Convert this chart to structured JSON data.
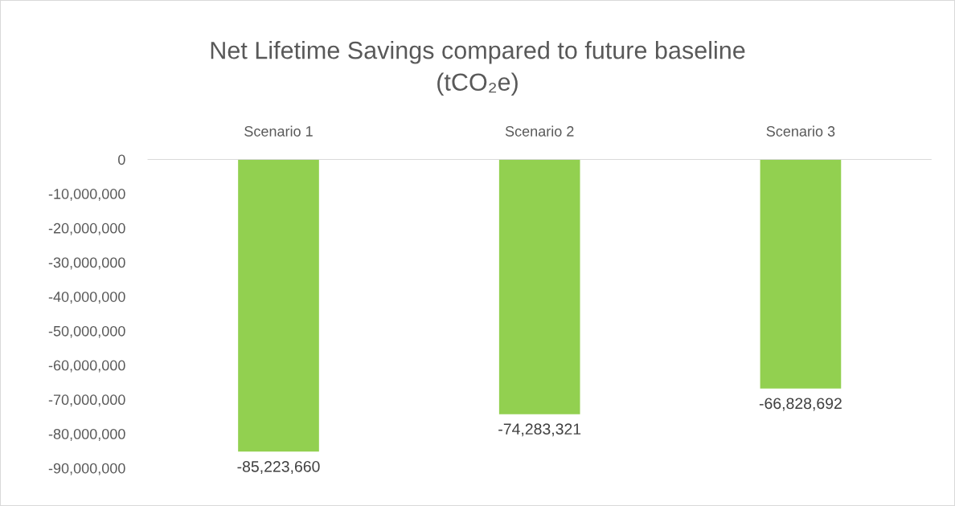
{
  "chart_data": {
    "type": "bar",
    "title": "Net Lifetime Savings compared to future baseline\n(tCO₂e)",
    "categories": [
      "Scenario 1",
      "Scenario 2",
      "Scenario 3"
    ],
    "values": [
      -85223660,
      -74283321,
      -66828692
    ],
    "color": "#92d050",
    "value_labels": [
      "-85,223,660",
      "-74,283,321",
      "-66,828,692"
    ],
    "ylim": [
      -90000000,
      0
    ],
    "yticks": [
      {
        "value": 0,
        "label": "0"
      },
      {
        "value": -10000000,
        "label": "-10,000,000"
      },
      {
        "value": -20000000,
        "label": "-20,000,000"
      },
      {
        "value": -30000000,
        "label": "-30,000,000"
      },
      {
        "value": -40000000,
        "label": "-40,000,000"
      },
      {
        "value": -50000000,
        "label": "-50,000,000"
      },
      {
        "value": -60000000,
        "label": "-60,000,000"
      },
      {
        "value": -70000000,
        "label": "-70,000,000"
      },
      {
        "value": -80000000,
        "label": "-80,000,000"
      },
      {
        "value": -90000000,
        "label": "-90,000,000"
      }
    ],
    "grid": false
  }
}
